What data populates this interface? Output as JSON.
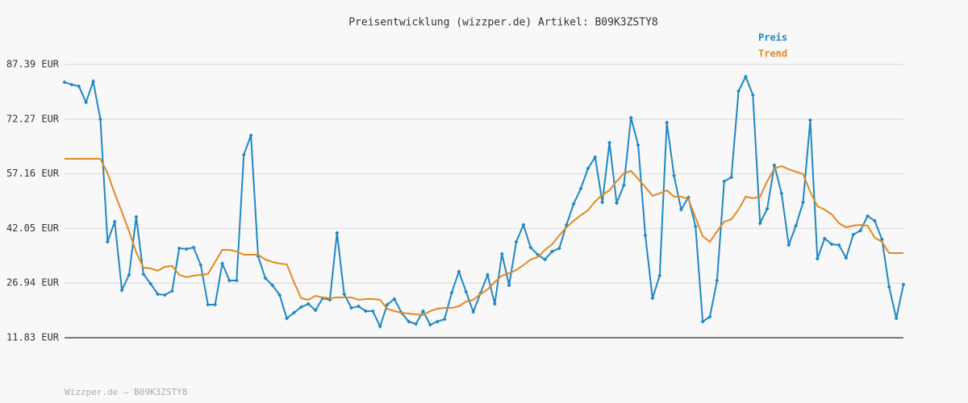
{
  "chart_data": {
    "type": "line",
    "title": "Preisentwicklung (wizzper.de) Artikel: B09K3ZSTY8",
    "footer": "Wizzper.de – B09K3ZSTY8",
    "legend": "top-right",
    "grid": true,
    "ylim": [
      11.83,
      87.39
    ],
    "yticks": [
      {
        "value": 11.83,
        "label": "11.83 EUR"
      },
      {
        "value": 26.94,
        "label": "26.94 EUR"
      },
      {
        "value": 42.05,
        "label": "42.05 EUR"
      },
      {
        "value": 57.16,
        "label": "57.16 EUR"
      },
      {
        "value": 72.27,
        "label": "72.27 EUR"
      },
      {
        "value": 87.39,
        "label": "87.39 EUR"
      }
    ],
    "series": [
      {
        "name": "Preis",
        "color": "#1f87c4",
        "markers": true,
        "values": [
          82.48,
          81.81,
          81.37,
          76.91,
          82.71,
          72.23,
          38.35,
          43.92,
          24.98,
          29.21,
          45.26,
          29.44,
          26.76,
          23.87,
          23.64,
          24.76,
          36.57,
          36.35,
          36.79,
          31.89,
          20.97,
          20.97,
          32.34,
          27.65,
          27.65,
          62.42,
          67.77,
          34.34,
          28.32,
          26.32,
          23.64,
          17.18,
          18.74,
          20.3,
          21.19,
          19.41,
          22.75,
          22.31,
          40.8,
          23.87,
          20.08,
          20.52,
          19.19,
          19.19,
          14.95,
          20.97,
          22.53,
          18.74,
          16.29,
          15.62,
          19.19,
          15.4,
          16.29,
          16.96,
          24.31,
          30.11,
          24.53,
          18.96,
          24.09,
          29.21,
          21.19,
          35.01,
          26.32,
          38.35,
          43.03,
          36.79,
          34.79,
          33.45,
          35.68,
          36.57,
          43.03,
          48.83,
          53.06,
          58.63,
          61.76,
          49.27,
          65.77,
          49.05,
          53.95,
          72.68,
          65.1,
          40.14,
          22.75,
          28.99,
          71.34,
          56.63,
          47.27,
          50.61,
          42.59,
          16.29,
          17.63,
          27.65,
          55.07,
          56.18,
          80.03,
          84.04,
          78.92,
          43.48,
          47.49,
          59.53,
          51.73,
          37.46,
          42.81,
          49.27,
          72.01,
          33.67,
          39.24,
          37.68,
          37.46,
          33.9,
          40.36,
          41.47,
          45.48,
          44.15,
          39.02,
          25.87,
          17.18,
          26.54
        ]
      },
      {
        "name": "Trend",
        "color": "#e08a22",
        "markers": false,
        "values": [
          61.31,
          61.31,
          61.31,
          61.31,
          61.31,
          61.31,
          57.3,
          51.73,
          46.6,
          41.25,
          35.46,
          31.22,
          31.0,
          30.33,
          31.44,
          31.67,
          29.21,
          28.55,
          28.99,
          29.21,
          29.44,
          32.78,
          36.12,
          36.12,
          35.68,
          34.79,
          34.79,
          34.79,
          33.45,
          32.78,
          32.34,
          32.11,
          27.21,
          22.75,
          22.31,
          23.42,
          22.97,
          22.75,
          22.97,
          22.97,
          22.97,
          22.31,
          22.53,
          22.53,
          22.31,
          19.85,
          19.19,
          18.74,
          18.52,
          18.29,
          18.07,
          19.19,
          19.85,
          20.08,
          20.08,
          20.52,
          21.86,
          22.31,
          23.87,
          25.2,
          27.21,
          28.99,
          29.66,
          30.55,
          31.89,
          33.45,
          34.12,
          36.12,
          37.68,
          40.14,
          42.36,
          44.15,
          45.71,
          47.05,
          49.5,
          51.28,
          52.62,
          55.07,
          57.3,
          57.97,
          55.74,
          53.51,
          51.06,
          51.73,
          52.62,
          50.83,
          50.83,
          50.17,
          45.04,
          39.91,
          38.35,
          41.25,
          43.92,
          44.59,
          47.27,
          50.83,
          50.39,
          50.83,
          55.07,
          58.63,
          59.3,
          58.41,
          57.74,
          57.07,
          52.17,
          48.16,
          47.27,
          45.93,
          43.48,
          42.36,
          42.81,
          43.03,
          42.81,
          39.47,
          38.35,
          35.23,
          35.23,
          35.23
        ]
      }
    ]
  }
}
